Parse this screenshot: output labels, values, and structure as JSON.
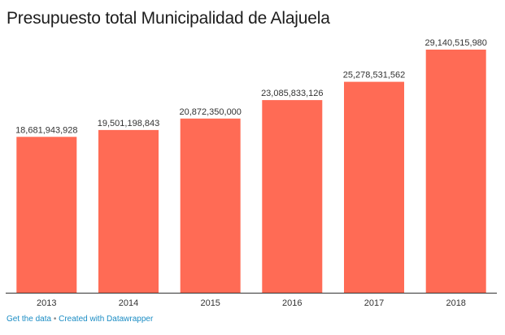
{
  "title": "Presupuesto total Municipalidad de Alajuela",
  "chart_data": {
    "type": "bar",
    "title": "Presupuesto total Municipalidad de Alajuela",
    "xlabel": "",
    "ylabel": "",
    "categories": [
      "2013",
      "2014",
      "2015",
      "2016",
      "2017",
      "2018"
    ],
    "values": [
      18681943928,
      19501198843,
      20872350000,
      23085833126,
      25278531562,
      29140515980
    ],
    "value_labels": [
      "18,681,943,928",
      "19,501,198,843",
      "20,872,350,000",
      "23,085,833,126",
      "25,278,531,562",
      "29,140,515,980"
    ],
    "ylim": [
      0,
      29140515980
    ],
    "grid": false,
    "bar_color": "#ff6b55",
    "axis_color": "#333333"
  },
  "footer": {
    "get_data": "Get the data",
    "separator": "•",
    "created_with": "Created with Datawrapper"
  }
}
